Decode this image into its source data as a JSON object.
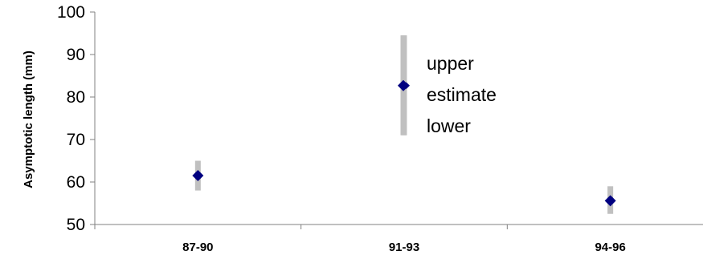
{
  "chart_data": {
    "type": "scatter",
    "title": "",
    "xlabel": "",
    "ylabel": "Asymptotic length (mm)",
    "categories": [
      "87-90",
      "91-93",
      "94-96"
    ],
    "ylim": [
      50,
      100
    ],
    "yticks": [
      50,
      60,
      70,
      80,
      90,
      100
    ],
    "grid": false,
    "series": [
      {
        "estimate": [
          61.5,
          82.7,
          55.6
        ],
        "upper": [
          65,
          94.5,
          59
        ],
        "lower": [
          58,
          71,
          52.5
        ]
      }
    ],
    "legend": {
      "position": "top-center",
      "upper_label": "upper",
      "estimate_label": "estimate",
      "lower_label": "lower"
    },
    "colors": {
      "marker": "#000080",
      "errorbar": "#c0c0c0",
      "axis": "#808080"
    }
  }
}
